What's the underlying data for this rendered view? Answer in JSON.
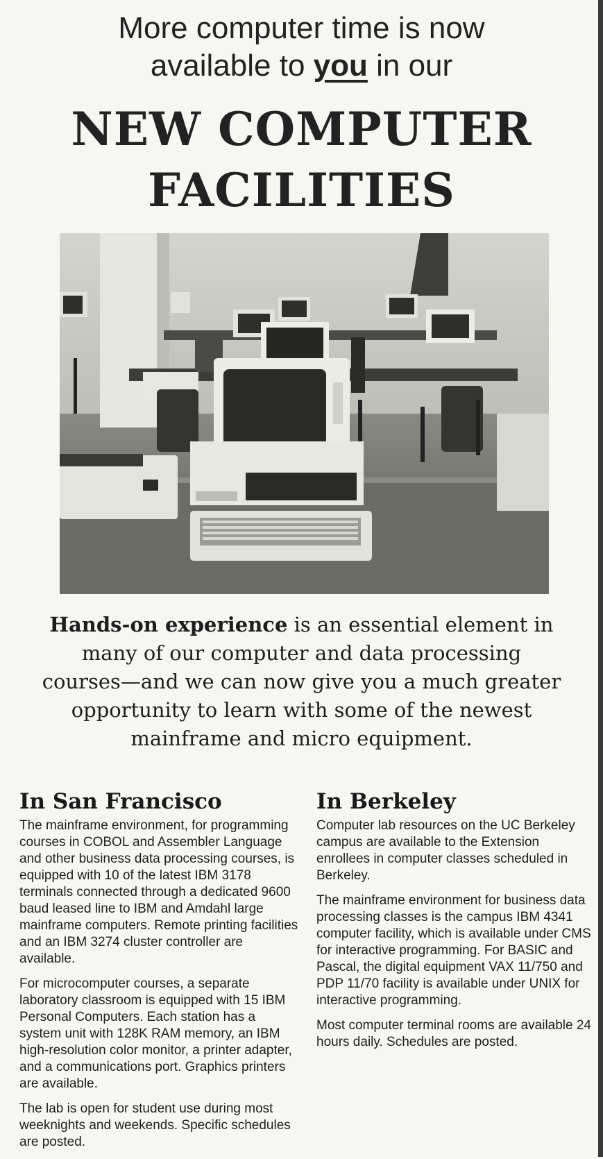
{
  "header": {
    "line1": "More computer time is now",
    "line2_before": "available to ",
    "line2_you": "you",
    "line2_after": " in our",
    "title_line1": "NEW COMPUTER",
    "title_line2": "FACILITIES"
  },
  "blurb": {
    "bold": "Hands-on experience",
    "rest": " is an essential element in many of our computer and data processing courses—and we can now give you a much greater opportunity to learn with some of the newest mainframe and micro equipment."
  },
  "san_francisco": {
    "heading": "In San Francisco",
    "paragraphs": [
      "The mainframe environment, for programming courses in COBOL and Assembler Language and other business data processing courses, is equipped with 10 of the latest IBM 3178 terminals connected through a dedicated 9600 baud leased line to IBM and Amdahl large mainframe computers. Remote printing facilities and an IBM 3274 cluster controller are available.",
      "For microcomputer courses, a separate laboratory classroom is equipped with 15 IBM Personal Computers. Each station has a system unit with 128K RAM memory, an IBM high-resolution color monitor, a printer adapter, and a communications port. Graphics printers are available.",
      "The lab is open for student use during most weeknights and weekends. Specific schedules are posted."
    ]
  },
  "berkeley": {
    "heading": "In Berkeley",
    "paragraphs": [
      "Computer lab resources on the UC Berkeley campus are available to the Extension enrollees in computer classes scheduled in Berkeley.",
      "The mainframe environment for business data processing classes is the campus IBM 4341 computer facility, which is available under CMS for interactive programming. For BASIC and Pascal, the digital equipment VAX 11/750 and PDP 11/70 facility is available under UNIX for interactive programming.",
      "Most computer terminal rooms are available 24 hours daily. Schedules are posted."
    ]
  }
}
